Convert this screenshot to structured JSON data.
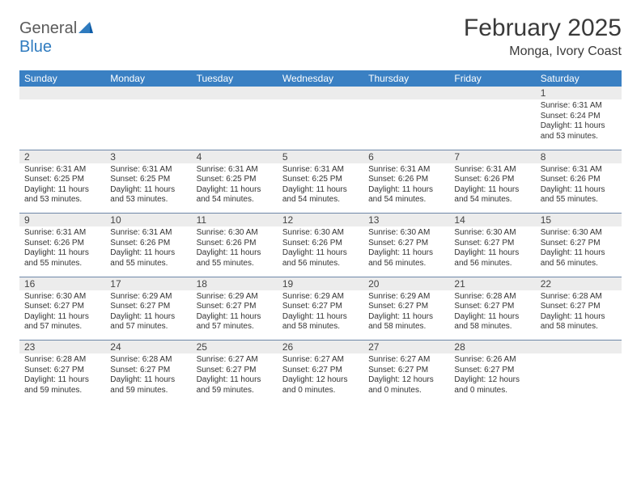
{
  "brand": {
    "part1": "General",
    "part2": "Blue"
  },
  "title": "February 2025",
  "location": "Monga, Ivory Coast",
  "colors": {
    "header_bg": "#3a80c3",
    "header_text": "#ffffff",
    "daynum_bg": "#ececec",
    "row_border": "#6e87a8",
    "body_text": "#333333",
    "title_text": "#3a3a3a",
    "logo_gray": "#5a5a5a",
    "logo_blue": "#2f7bbf"
  },
  "day_headers": [
    "Sunday",
    "Monday",
    "Tuesday",
    "Wednesday",
    "Thursday",
    "Friday",
    "Saturday"
  ],
  "weeks": [
    {
      "nums": [
        "",
        "",
        "",
        "",
        "",
        "",
        "1"
      ],
      "cells": [
        null,
        null,
        null,
        null,
        null,
        null,
        {
          "sunrise": "Sunrise: 6:31 AM",
          "sunset": "Sunset: 6:24 PM",
          "daylight": "Daylight: 11 hours and 53 minutes."
        }
      ]
    },
    {
      "nums": [
        "2",
        "3",
        "4",
        "5",
        "6",
        "7",
        "8"
      ],
      "cells": [
        {
          "sunrise": "Sunrise: 6:31 AM",
          "sunset": "Sunset: 6:25 PM",
          "daylight": "Daylight: 11 hours and 53 minutes."
        },
        {
          "sunrise": "Sunrise: 6:31 AM",
          "sunset": "Sunset: 6:25 PM",
          "daylight": "Daylight: 11 hours and 53 minutes."
        },
        {
          "sunrise": "Sunrise: 6:31 AM",
          "sunset": "Sunset: 6:25 PM",
          "daylight": "Daylight: 11 hours and 54 minutes."
        },
        {
          "sunrise": "Sunrise: 6:31 AM",
          "sunset": "Sunset: 6:25 PM",
          "daylight": "Daylight: 11 hours and 54 minutes."
        },
        {
          "sunrise": "Sunrise: 6:31 AM",
          "sunset": "Sunset: 6:26 PM",
          "daylight": "Daylight: 11 hours and 54 minutes."
        },
        {
          "sunrise": "Sunrise: 6:31 AM",
          "sunset": "Sunset: 6:26 PM",
          "daylight": "Daylight: 11 hours and 54 minutes."
        },
        {
          "sunrise": "Sunrise: 6:31 AM",
          "sunset": "Sunset: 6:26 PM",
          "daylight": "Daylight: 11 hours and 55 minutes."
        }
      ]
    },
    {
      "nums": [
        "9",
        "10",
        "11",
        "12",
        "13",
        "14",
        "15"
      ],
      "cells": [
        {
          "sunrise": "Sunrise: 6:31 AM",
          "sunset": "Sunset: 6:26 PM",
          "daylight": "Daylight: 11 hours and 55 minutes."
        },
        {
          "sunrise": "Sunrise: 6:31 AM",
          "sunset": "Sunset: 6:26 PM",
          "daylight": "Daylight: 11 hours and 55 minutes."
        },
        {
          "sunrise": "Sunrise: 6:30 AM",
          "sunset": "Sunset: 6:26 PM",
          "daylight": "Daylight: 11 hours and 55 minutes."
        },
        {
          "sunrise": "Sunrise: 6:30 AM",
          "sunset": "Sunset: 6:26 PM",
          "daylight": "Daylight: 11 hours and 56 minutes."
        },
        {
          "sunrise": "Sunrise: 6:30 AM",
          "sunset": "Sunset: 6:27 PM",
          "daylight": "Daylight: 11 hours and 56 minutes."
        },
        {
          "sunrise": "Sunrise: 6:30 AM",
          "sunset": "Sunset: 6:27 PM",
          "daylight": "Daylight: 11 hours and 56 minutes."
        },
        {
          "sunrise": "Sunrise: 6:30 AM",
          "sunset": "Sunset: 6:27 PM",
          "daylight": "Daylight: 11 hours and 56 minutes."
        }
      ]
    },
    {
      "nums": [
        "16",
        "17",
        "18",
        "19",
        "20",
        "21",
        "22"
      ],
      "cells": [
        {
          "sunrise": "Sunrise: 6:30 AM",
          "sunset": "Sunset: 6:27 PM",
          "daylight": "Daylight: 11 hours and 57 minutes."
        },
        {
          "sunrise": "Sunrise: 6:29 AM",
          "sunset": "Sunset: 6:27 PM",
          "daylight": "Daylight: 11 hours and 57 minutes."
        },
        {
          "sunrise": "Sunrise: 6:29 AM",
          "sunset": "Sunset: 6:27 PM",
          "daylight": "Daylight: 11 hours and 57 minutes."
        },
        {
          "sunrise": "Sunrise: 6:29 AM",
          "sunset": "Sunset: 6:27 PM",
          "daylight": "Daylight: 11 hours and 58 minutes."
        },
        {
          "sunrise": "Sunrise: 6:29 AM",
          "sunset": "Sunset: 6:27 PM",
          "daylight": "Daylight: 11 hours and 58 minutes."
        },
        {
          "sunrise": "Sunrise: 6:28 AM",
          "sunset": "Sunset: 6:27 PM",
          "daylight": "Daylight: 11 hours and 58 minutes."
        },
        {
          "sunrise": "Sunrise: 6:28 AM",
          "sunset": "Sunset: 6:27 PM",
          "daylight": "Daylight: 11 hours and 58 minutes."
        }
      ]
    },
    {
      "nums": [
        "23",
        "24",
        "25",
        "26",
        "27",
        "28",
        ""
      ],
      "cells": [
        {
          "sunrise": "Sunrise: 6:28 AM",
          "sunset": "Sunset: 6:27 PM",
          "daylight": "Daylight: 11 hours and 59 minutes."
        },
        {
          "sunrise": "Sunrise: 6:28 AM",
          "sunset": "Sunset: 6:27 PM",
          "daylight": "Daylight: 11 hours and 59 minutes."
        },
        {
          "sunrise": "Sunrise: 6:27 AM",
          "sunset": "Sunset: 6:27 PM",
          "daylight": "Daylight: 11 hours and 59 minutes."
        },
        {
          "sunrise": "Sunrise: 6:27 AM",
          "sunset": "Sunset: 6:27 PM",
          "daylight": "Daylight: 12 hours and 0 minutes."
        },
        {
          "sunrise": "Sunrise: 6:27 AM",
          "sunset": "Sunset: 6:27 PM",
          "daylight": "Daylight: 12 hours and 0 minutes."
        },
        {
          "sunrise": "Sunrise: 6:26 AM",
          "sunset": "Sunset: 6:27 PM",
          "daylight": "Daylight: 12 hours and 0 minutes."
        },
        null
      ]
    }
  ]
}
